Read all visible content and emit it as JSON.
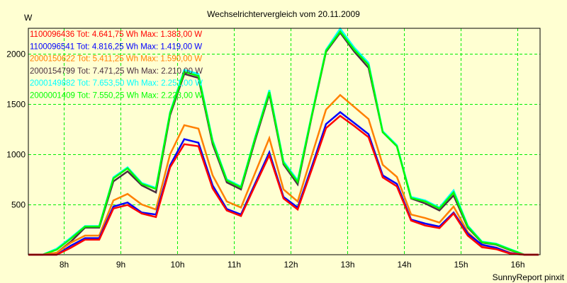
{
  "chart_data": {
    "type": "line",
    "title": "Wechselrichtervergleich vom 20.11.2009",
    "ylabel": "W",
    "xlabel": "",
    "footer": "SunnyReport pinxit",
    "xlim": [
      7.375,
      16.4
    ],
    "ylim": [
      0,
      2254
    ],
    "grid": true,
    "legend_placement": "top-left",
    "x_ticks": [
      8,
      9,
      10,
      11,
      12,
      13,
      14,
      15,
      16
    ],
    "x_tick_labels": [
      "8h",
      "9h",
      "10h",
      "11h",
      "12h",
      "13h",
      "14h",
      "15h",
      "16h"
    ],
    "y_ticks": [
      500,
      1000,
      1500,
      2000
    ],
    "y_tick_labels": [
      "500",
      "1000",
      "1500",
      "2000"
    ],
    "x": [
      7.625,
      7.875,
      8.125,
      8.375,
      8.625,
      8.875,
      9.125,
      9.375,
      9.625,
      9.875,
      10.125,
      10.375,
      10.625,
      10.875,
      11.125,
      11.375,
      11.625,
      11.875,
      12.125,
      12.375,
      12.625,
      12.875,
      13.125,
      13.375,
      13.625,
      13.875,
      14.125,
      14.375,
      14.625,
      14.875,
      15.125,
      15.375,
      15.625,
      15.875,
      16.125,
      16.375
    ],
    "series": [
      {
        "name": "1100096436",
        "label": "1100096436 Tot: 4.641,75 Wh Max: 1.383,00 W",
        "color": "#ff0000",
        "values": [
          0,
          0,
          70,
          150,
          150,
          460,
          495,
          410,
          375,
          870,
          1100,
          1080,
          660,
          440,
          385,
          690,
          990,
          560,
          450,
          850,
          1260,
          1383,
          1280,
          1170,
          770,
          680,
          340,
          290,
          265,
          410,
          190,
          75,
          55,
          10,
          0,
          0
        ]
      },
      {
        "name": "1100096541",
        "label": "1100096541 Tot: 4.816,25 Wh Max: 1.419,00 W",
        "color": "#0000ff",
        "values": [
          0,
          0,
          90,
          165,
          165,
          480,
          520,
          420,
          400,
          890,
          1150,
          1115,
          690,
          455,
          400,
          710,
          1020,
          575,
          470,
          880,
          1300,
          1419,
          1310,
          1200,
          790,
          705,
          350,
          310,
          280,
          420,
          210,
          100,
          70,
          15,
          0,
          0
        ]
      },
      {
        "name": "2000150622",
        "label": "2000150622 Tot: 5.411,25 Wh Max: 1.590,00 W",
        "color": "#ff8000",
        "values": [
          0,
          20,
          120,
          190,
          190,
          540,
          605,
          500,
          450,
          1000,
          1290,
          1255,
          790,
          530,
          470,
          815,
          1160,
          650,
          530,
          990,
          1445,
          1590,
          1470,
          1350,
          895,
          775,
          400,
          365,
          320,
          480,
          225,
          90,
          70,
          20,
          0,
          0
        ]
      },
      {
        "name": "2000154799",
        "label": "2000154799 Tot: 7.471,25 Wh Max: 2.210,00 W",
        "color": "#4a3040",
        "values": [
          0,
          20,
          130,
          270,
          270,
          730,
          830,
          690,
          620,
          1390,
          1800,
          1760,
          1100,
          720,
          650,
          1140,
          1600,
          900,
          700,
          1380,
          2020,
          2210,
          2020,
          1860,
          1220,
          1080,
          560,
          510,
          440,
          590,
          270,
          120,
          100,
          45,
          0,
          0
        ]
      },
      {
        "name": "2000149882",
        "label": "2000149882 Tot: 7.653,50 Wh Max: 2.251,00 W",
        "color": "#00ffff",
        "values": [
          0,
          60,
          170,
          285,
          285,
          770,
          870,
          715,
          665,
          1420,
          1840,
          1800,
          1140,
          750,
          680,
          1170,
          1640,
          930,
          740,
          1400,
          2040,
          2251,
          2060,
          1910,
          1230,
          1090,
          575,
          540,
          470,
          640,
          290,
          130,
          110,
          55,
          0,
          0
        ]
      },
      {
        "name": "2000001409",
        "label": "2000001409 Tot: 7.550,25 Wh Max: 2.223,00 W",
        "color": "#00ff00",
        "values": [
          0,
          50,
          160,
          280,
          280,
          760,
          860,
          705,
          655,
          1410,
          1820,
          1780,
          1125,
          740,
          670,
          1160,
          1620,
          915,
          725,
          1390,
          2030,
          2223,
          2040,
          1890,
          1220,
          1080,
          565,
          530,
          460,
          620,
          280,
          125,
          105,
          50,
          0,
          0
        ]
      }
    ],
    "draw_order": [
      3,
      4,
      5,
      2,
      1,
      0
    ]
  },
  "colors": {
    "background": "#ffffd2",
    "grid": "#00ee00",
    "axis": "#000000"
  }
}
